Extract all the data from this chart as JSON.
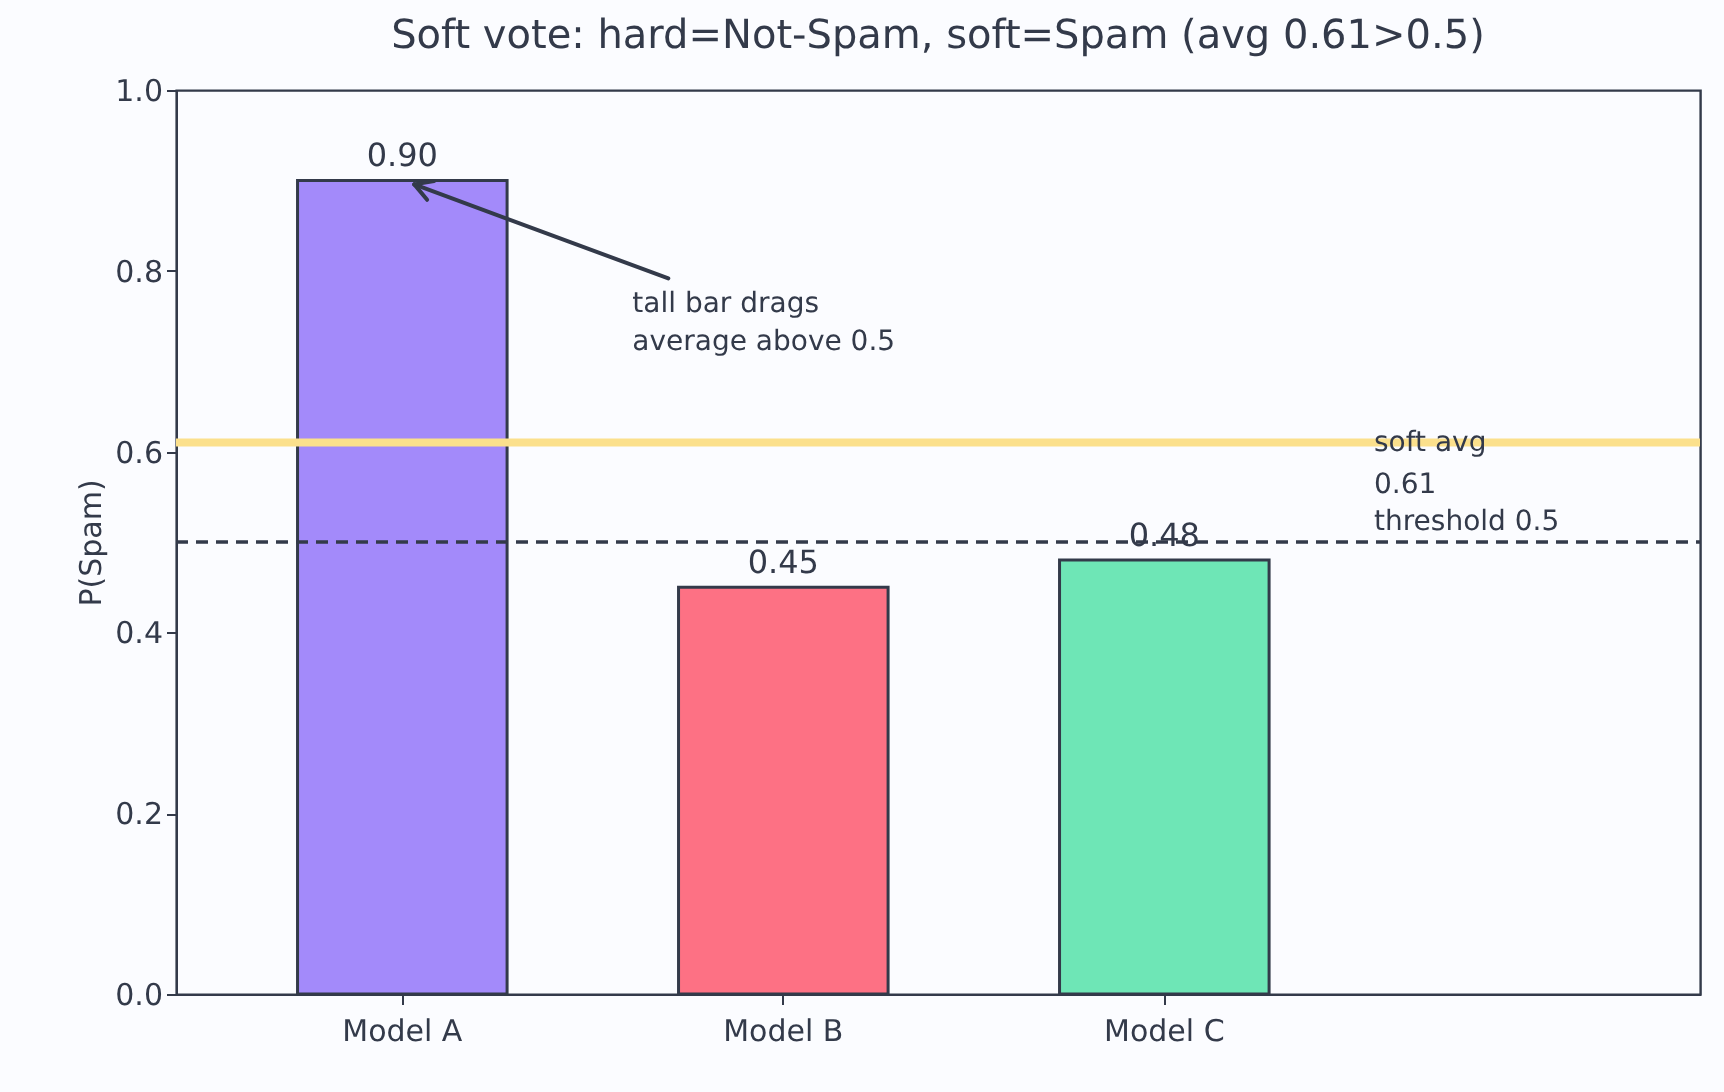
{
  "chart_data": {
    "type": "bar",
    "title": "Soft vote: hard=Not-Spam, soft=Spam (avg 0.61>0.5)",
    "ylabel": "P(Spam)",
    "categories": [
      "Model A",
      "Model B",
      "Model C"
    ],
    "values": [
      0.9,
      0.45,
      0.48
    ],
    "colors": [
      "#a38afa",
      "#fd7184",
      "#6ee6b6"
    ],
    "ylim": [
      0,
      1
    ],
    "yticks": [
      {
        "value": 0,
        "label": "0.0"
      },
      {
        "value": 0.2,
        "label": "0.2"
      },
      {
        "value": 0.4,
        "label": "0.4"
      },
      {
        "value": 0.6,
        "label": "0.6"
      },
      {
        "value": 0.8,
        "label": "0.8"
      },
      {
        "value": 1,
        "label": "1.0"
      }
    ],
    "value_labels": [
      "0.90",
      "0.45",
      "0.48"
    ],
    "grid": false,
    "ref_lines": [
      {
        "axis": "y",
        "value": 0.61,
        "label": "soft avg\n0.61",
        "color": "#fbe08c",
        "line_style": "solid"
      },
      {
        "axis": "y",
        "value": 0.5,
        "label": "threshold 0.5",
        "color": "#333a4a",
        "line_style": "dashed"
      }
    ],
    "annotations": [
      {
        "text": "tall bar drags\naverage above 0.5",
        "x": "Model A",
        "y": 0.9
      }
    ]
  }
}
